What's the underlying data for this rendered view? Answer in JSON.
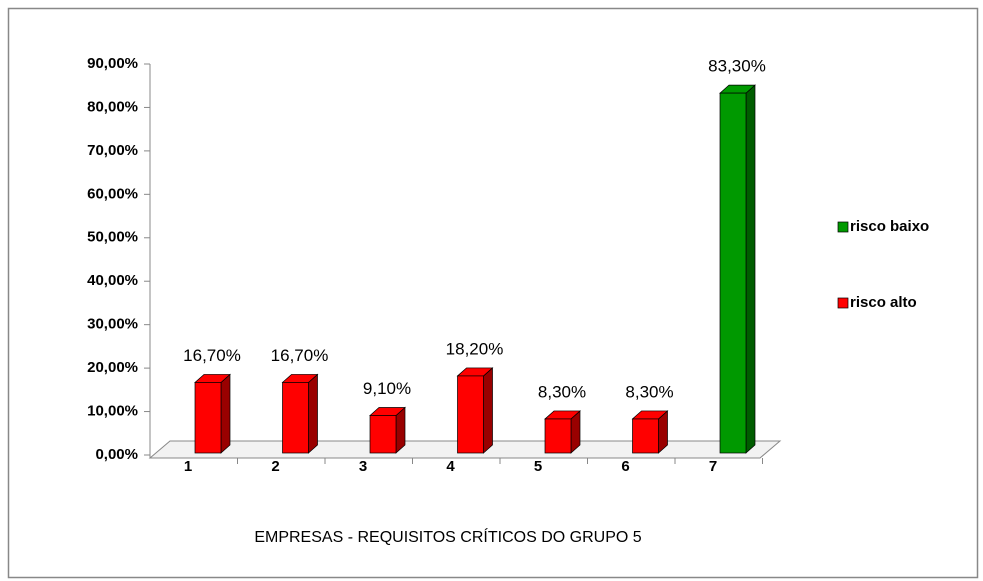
{
  "chart_data": {
    "type": "bar3d",
    "x_label": "EMPRESAS - REQUISITOS CRÍTICOS  DO GRUPO 5",
    "categories": [
      "1",
      "2",
      "3",
      "4",
      "5",
      "6",
      "7"
    ],
    "series": [
      {
        "name": "risco baixo",
        "color": "#009900",
        "values": [
          null,
          null,
          null,
          null,
          null,
          null,
          83.3
        ],
        "value_labels": [
          null,
          null,
          null,
          null,
          null,
          null,
          "83,30%"
        ]
      },
      {
        "name": "risco alto",
        "color": "#ff0000",
        "values": [
          16.7,
          16.7,
          9.1,
          18.2,
          8.3,
          8.3,
          null
        ],
        "value_labels": [
          "16,70%",
          "16,70%",
          "9,10%",
          "18,20%",
          "8,30%",
          "8,30%",
          null
        ]
      }
    ],
    "ylim": [
      0,
      90
    ],
    "yticks": [
      {
        "value": 0,
        "label": "0,00%"
      },
      {
        "value": 10,
        "label": "10,00%"
      },
      {
        "value": 20,
        "label": "20,00%"
      },
      {
        "value": 30,
        "label": "30,00%"
      },
      {
        "value": 40,
        "label": "40,00%"
      },
      {
        "value": 50,
        "label": "50,00%"
      },
      {
        "value": 60,
        "label": "60,00%"
      },
      {
        "value": 70,
        "label": "70,00%"
      },
      {
        "value": 80,
        "label": "80,00%"
      },
      {
        "value": 90,
        "label": "90,00%"
      }
    ],
    "legend": "right"
  }
}
